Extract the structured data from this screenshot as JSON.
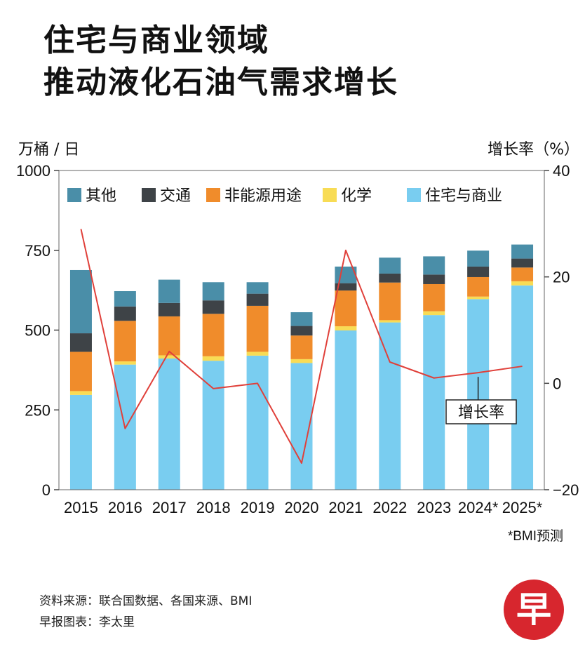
{
  "title": {
    "line1": "住宅与商业领域",
    "line2": "推动液化石油气需求增长"
  },
  "chart_data": {
    "type": "bar",
    "stacked": true,
    "categories": [
      "2015",
      "2016",
      "2017",
      "2018",
      "2019",
      "2020",
      "2021",
      "2022",
      "2023",
      "2024*",
      "2025*"
    ],
    "series": [
      {
        "name": "住宅与商业",
        "color": "#79cdf0",
        "values": [
          297,
          392,
          411,
          404,
          420,
          397,
          499,
          524,
          547,
          597,
          640
        ]
      },
      {
        "name": "化学",
        "color": "#f8dc55",
        "values": [
          12,
          10,
          10,
          14,
          12,
          12,
          13,
          7,
          12,
          8,
          13
        ]
      },
      {
        "name": "非能源用途",
        "color": "#f08c2b",
        "values": [
          123,
          127,
          122,
          133,
          144,
          74,
          112,
          118,
          85,
          61,
          43
        ]
      },
      {
        "name": "交通",
        "color": "#3e4347",
        "values": [
          58,
          45,
          42,
          42,
          38,
          30,
          23,
          28,
          30,
          33,
          28
        ]
      },
      {
        "name": "其他",
        "color": "#4a8ea8",
        "values": [
          198,
          48,
          73,
          57,
          36,
          43,
          52,
          50,
          57,
          50,
          44
        ]
      }
    ],
    "line": {
      "name": "增长率",
      "color": "#e0403a",
      "values": [
        29,
        -8.5,
        6,
        -1,
        0,
        -15,
        25,
        4,
        1,
        2,
        3.2
      ]
    },
    "ylabel_left": "万桶 / 日",
    "ylabel_right": "增长率（%）",
    "ylim_left": [
      0,
      1000
    ],
    "ylim_right": [
      -20,
      40
    ],
    "yticks_left": [
      "0",
      "250",
      "500",
      "750",
      "1000"
    ],
    "yticks_right": [
      "−20",
      "0",
      "20",
      "40"
    ],
    "legend_order": [
      "其他",
      "交通",
      "非能源用途",
      "化学",
      "住宅与商业"
    ],
    "legend_position": "top",
    "annotation": "增长率",
    "footnote": "*BMI预测"
  },
  "source": {
    "line1": "资料来源：联合国数据、各国来源、BMI",
    "line2": "早报图表：李太里"
  },
  "logo": {
    "glyph": "早",
    "color": "#d7262e"
  }
}
